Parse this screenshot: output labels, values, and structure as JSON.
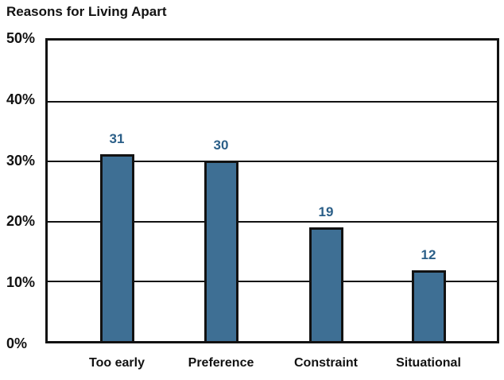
{
  "title": "Reasons for Living Apart",
  "chart_data": {
    "type": "bar",
    "title": "Reasons for Living Apart",
    "categories": [
      "Too early",
      "Preference",
      "Constraint",
      "Situational"
    ],
    "values": [
      31,
      30,
      19,
      12
    ],
    "series": [
      {
        "name": "Reasons for Living Apart",
        "values": [
          31,
          30,
          19,
          12
        ]
      }
    ],
    "xlabel": "",
    "ylabel": "",
    "ylim": [
      0,
      50
    ],
    "yticks": [
      0,
      10,
      20,
      30,
      40,
      50
    ],
    "ytick_labels": [
      "0%",
      "10%",
      "20%",
      "30%",
      "40%",
      "50%"
    ],
    "grid": true,
    "legend_position": "none",
    "colors": {
      "bar_fill": "#3E6F94",
      "bar_border": "#121212",
      "value_label": "#2B5F88",
      "axis": "#121212",
      "text": "#121212",
      "background": "#FFFFFF"
    }
  }
}
